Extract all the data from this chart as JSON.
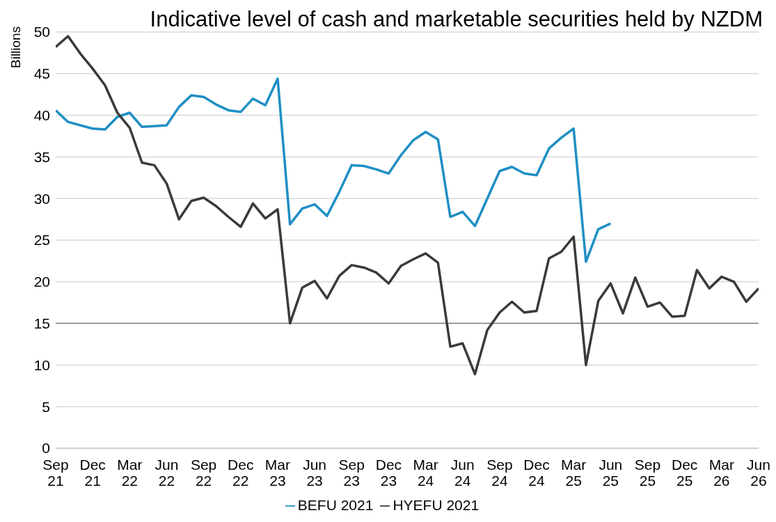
{
  "chart_data": {
    "type": "line",
    "title": "Indicative level of cash and marketable securities held by NZDM",
    "ylabel": "Billions",
    "categories": [
      "Sep 21",
      null,
      null,
      "Dec 21",
      null,
      null,
      "Mar 22",
      null,
      null,
      "Jun 22",
      null,
      null,
      "Sep 22",
      null,
      null,
      "Dec 22",
      null,
      null,
      "Mar 23",
      null,
      null,
      "Jun 23",
      null,
      null,
      "Sep 23",
      null,
      null,
      "Dec 23",
      null,
      null,
      "Mar 24",
      null,
      null,
      "Jun 24",
      null,
      null,
      "Sep 24",
      null,
      null,
      "Dec 24",
      null,
      null,
      "Mar 25",
      null,
      null,
      "Jun 25",
      null,
      null,
      "Sep 25",
      null,
      null,
      "Dec 25",
      null,
      null,
      "Mar 26",
      null,
      null,
      "Jun 26"
    ],
    "series": [
      {
        "name": "BEFU 2021",
        "color": "#1f8fc4",
        "values": [
          40.6,
          39.2,
          38.8,
          38.4,
          38.3,
          39.8,
          40.3,
          38.6,
          38.7,
          38.8,
          41.0,
          42.4,
          42.2,
          41.3,
          40.6,
          40.4,
          42.0,
          41.2,
          44.4,
          26.9,
          28.8,
          29.3,
          27.9,
          30.8,
          34.0,
          33.9,
          33.5,
          33.0,
          35.2,
          37.0,
          38.0,
          37.1,
          27.8,
          28.4,
          26.7,
          30.0,
          33.3,
          33.8,
          33.0,
          32.8,
          36.0,
          37.3,
          38.4,
          22.4,
          26.3,
          27.0,
          null,
          null,
          null,
          null,
          null,
          null,
          null,
          null,
          null,
          null,
          null,
          null
        ]
      },
      {
        "name": "HYEFU 2021",
        "color": "#3a3a3a",
        "values": [
          48.2,
          49.5,
          47.4,
          45.6,
          43.6,
          40.3,
          38.5,
          34.3,
          34.0,
          31.8,
          27.5,
          29.7,
          30.1,
          29.1,
          27.8,
          26.6,
          29.4,
          27.6,
          28.7,
          15.0,
          19.3,
          20.1,
          18.0,
          20.7,
          22.0,
          21.7,
          21.1,
          19.8,
          21.9,
          22.7,
          23.4,
          22.3,
          12.2,
          12.6,
          8.9,
          14.2,
          16.3,
          17.6,
          16.3,
          16.5,
          22.8,
          23.6,
          25.4,
          10.0,
          17.7,
          19.8,
          16.2,
          20.5,
          17.0,
          17.5,
          15.8,
          15.9,
          21.4,
          19.2,
          20.6,
          20.0,
          17.6,
          19.2
        ]
      }
    ],
    "ylim": [
      0,
      50
    ],
    "yticks": [
      0,
      5,
      10,
      15,
      20,
      25,
      30,
      35,
      40,
      45,
      50
    ],
    "ref_lines": [
      {
        "axis": "y",
        "value": 15,
        "color": "#7f7f7f"
      }
    ],
    "grid": "y",
    "legend": "bottom",
    "marker": "none",
    "line_style": "solid"
  }
}
